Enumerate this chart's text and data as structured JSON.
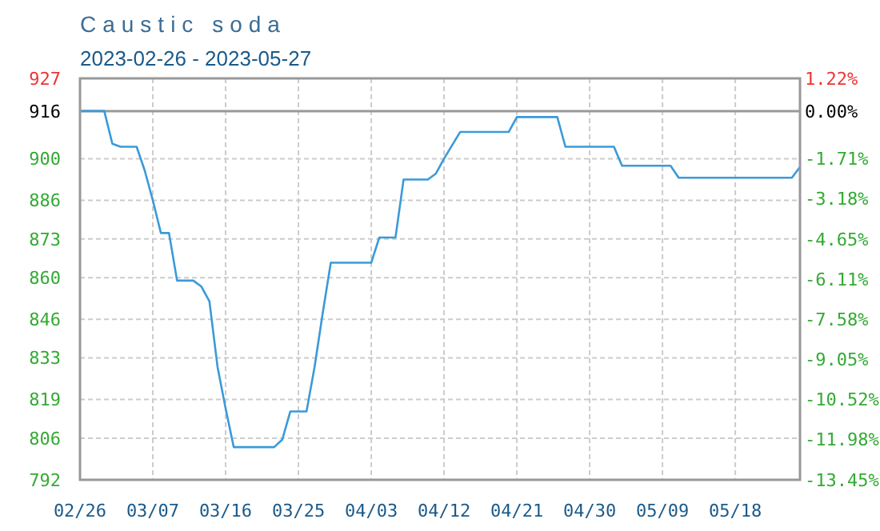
{
  "chart_data": {
    "type": "line",
    "title": "Caustic soda",
    "subtitle": "2023-02-26 - 2023-05-27",
    "x": [
      "2023-02-26",
      "2023-03-01",
      "2023-03-02",
      "2023-03-03",
      "2023-03-05",
      "2023-03-06",
      "2023-03-07",
      "2023-03-08",
      "2023-03-09",
      "2023-03-10",
      "2023-03-12",
      "2023-03-13",
      "2023-03-14",
      "2023-03-15",
      "2023-03-16",
      "2023-03-17",
      "2023-03-22",
      "2023-03-23",
      "2023-03-24",
      "2023-03-26",
      "2023-03-27",
      "2023-03-28",
      "2023-03-29",
      "2023-04-03",
      "2023-04-04",
      "2023-04-06",
      "2023-04-07",
      "2023-04-10",
      "2023-04-11",
      "2023-04-12",
      "2023-04-14",
      "2023-04-20",
      "2023-04-21",
      "2023-04-26",
      "2023-04-27",
      "2023-05-03",
      "2023-05-04",
      "2023-05-10",
      "2023-05-11",
      "2023-05-25",
      "2023-05-26"
    ],
    "series": [
      {
        "color": "#3a9ad9",
        "values": [
          916,
          916,
          905,
          904,
          904,
          896,
          886,
          875,
          875,
          859,
          859,
          857,
          852,
          830,
          816,
          803,
          803,
          805.5,
          815,
          815,
          830,
          848,
          865,
          865,
          873.5,
          873.5,
          893,
          893,
          895,
          900,
          909,
          909,
          914,
          914,
          904,
          904,
          897.6,
          897.6,
          893.6,
          893.6,
          897.2
        ]
      }
    ],
    "xlim": [
      "2023-02-26",
      "2023-05-26"
    ],
    "xticks": [
      {
        "value": "2023-02-26",
        "label": "02/26"
      },
      {
        "value": "2023-03-07",
        "label": "03/07"
      },
      {
        "value": "2023-03-16",
        "label": "03/16"
      },
      {
        "value": "2023-03-25",
        "label": "03/25"
      },
      {
        "value": "2023-04-03",
        "label": "04/03"
      },
      {
        "value": "2023-04-12",
        "label": "04/12"
      },
      {
        "value": "2023-04-21",
        "label": "04/21"
      },
      {
        "value": "2023-04-30",
        "label": "04/30"
      },
      {
        "value": "2023-05-09",
        "label": "05/09"
      },
      {
        "value": "2023-05-18",
        "label": "05/18"
      }
    ],
    "ylim": [
      792,
      927
    ],
    "yticks": [
      927,
      916,
      900,
      886,
      873,
      860,
      846,
      833,
      819,
      806,
      792
    ],
    "y2lim": [
      -13.45,
      1.22
    ],
    "y2ticks": [
      {
        "value": 1.22,
        "label": "1.22%"
      },
      {
        "value": 0,
        "label": "0.00%"
      },
      {
        "value": -1.71,
        "label": "-1.71%"
      },
      {
        "value": -3.18,
        "label": "-3.18%"
      },
      {
        "value": -4.65,
        "label": "-4.65%"
      },
      {
        "value": -6.11,
        "label": "-6.11%"
      },
      {
        "value": -7.58,
        "label": "-7.58%"
      },
      {
        "value": -9.05,
        "label": "-9.05%"
      },
      {
        "value": -10.52,
        "label": "-10.52%"
      },
      {
        "value": -11.98,
        "label": "-11.98%"
      },
      {
        "value": -13.45,
        "label": "-13.45%"
      }
    ],
    "ref_lines": [
      {
        "axis": "y",
        "value": 916,
        "color": "#999999"
      }
    ],
    "grid": true,
    "line_style": "solid",
    "marker": "none"
  }
}
